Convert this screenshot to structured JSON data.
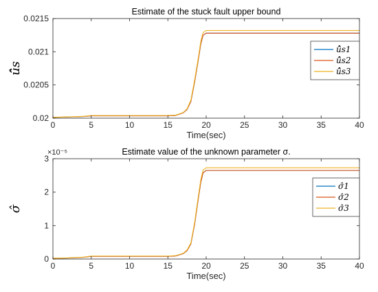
{
  "chart_data": [
    {
      "type": "line",
      "title": "Estimate of the stuck fault upper bound",
      "xlabel": "Time(sec)",
      "ylabel": "û̂s",
      "xlim": [
        0,
        40
      ],
      "ylim": [
        0.02,
        0.0215
      ],
      "xticks": [
        0,
        5,
        10,
        15,
        20,
        25,
        30,
        35,
        40
      ],
      "yticks": [
        0.02,
        0.0205,
        0.021,
        0.0215
      ],
      "ytick_labels": [
        "0.02",
        "0.0205",
        "0.021",
        "0.0215"
      ],
      "legend_position": "right",
      "series": [
        {
          "name": "û̂s1",
          "color": "#0072BD",
          "points": [
            [
              0,
              0.020012
            ],
            [
              2,
              0.020018
            ],
            [
              4,
              0.020025
            ],
            [
              5,
              0.020035
            ],
            [
              10,
              0.020035
            ],
            [
              15,
              0.020036
            ],
            [
              16,
              0.02004
            ],
            [
              17,
              0.02008
            ],
            [
              17.5,
              0.02013
            ],
            [
              18,
              0.02025
            ],
            [
              18.5,
              0.02055
            ],
            [
              19,
              0.0209
            ],
            [
              19.3,
              0.02112
            ],
            [
              19.6,
              0.02125
            ],
            [
              20,
              0.02128
            ],
            [
              25,
              0.02128
            ],
            [
              30,
              0.02128
            ],
            [
              35,
              0.02128
            ],
            [
              40,
              0.02128
            ]
          ]
        },
        {
          "name": "û̂s2",
          "color": "#D95319",
          "points": [
            [
              0,
              0.020012
            ],
            [
              2,
              0.020018
            ],
            [
              4,
              0.020025
            ],
            [
              5,
              0.020035
            ],
            [
              10,
              0.020035
            ],
            [
              15,
              0.020036
            ],
            [
              16,
              0.02004
            ],
            [
              17,
              0.02008
            ],
            [
              17.5,
              0.02013
            ],
            [
              18,
              0.02025
            ],
            [
              18.5,
              0.02055
            ],
            [
              19,
              0.0209
            ],
            [
              19.3,
              0.02112
            ],
            [
              19.6,
              0.02125
            ],
            [
              20,
              0.02128
            ],
            [
              25,
              0.02128
            ],
            [
              30,
              0.02128
            ],
            [
              35,
              0.02128
            ],
            [
              40,
              0.02128
            ]
          ]
        },
        {
          "name": "û̂s3",
          "color": "#EDB120",
          "points": [
            [
              0,
              0.020014
            ],
            [
              2,
              0.02002
            ],
            [
              4,
              0.020028
            ],
            [
              5,
              0.02004
            ],
            [
              10,
              0.02004
            ],
            [
              15,
              0.020041
            ],
            [
              16,
              0.020045
            ],
            [
              17,
              0.020085
            ],
            [
              17.5,
              0.02014
            ],
            [
              18,
              0.02027
            ],
            [
              18.5,
              0.02058
            ],
            [
              19,
              0.02093
            ],
            [
              19.3,
              0.02116
            ],
            [
              19.6,
              0.02129
            ],
            [
              20,
              0.02132
            ],
            [
              25,
              0.02132
            ],
            [
              30,
              0.02132
            ],
            [
              35,
              0.02132
            ],
            [
              40,
              0.02132
            ]
          ]
        }
      ]
    },
    {
      "type": "line",
      "title": "Estimate value of the unknown parameter σ.",
      "xlabel": "Time(sec)",
      "ylabel": "σ̂",
      "y_exponent": "×10⁻⁵",
      "xlim": [
        0,
        40
      ],
      "ylim": [
        0,
        3
      ],
      "xticks": [
        0,
        5,
        10,
        15,
        20,
        25,
        30,
        35,
        40
      ],
      "yticks": [
        0,
        1,
        2,
        3
      ],
      "ytick_labels": [
        "0",
        "1",
        "2",
        "3"
      ],
      "legend_position": "right",
      "series": [
        {
          "name": "σ̂1",
          "color": "#0072BD",
          "points": [
            [
              0,
              0.02
            ],
            [
              2,
              0.03
            ],
            [
              4,
              0.05
            ],
            [
              5,
              0.08
            ],
            [
              10,
              0.08
            ],
            [
              15,
              0.08
            ],
            [
              16,
              0.09
            ],
            [
              17,
              0.16
            ],
            [
              17.5,
              0.25
            ],
            [
              18,
              0.45
            ],
            [
              18.5,
              1.05
            ],
            [
              19,
              1.85
            ],
            [
              19.3,
              2.3
            ],
            [
              19.6,
              2.58
            ],
            [
              20,
              2.65
            ],
            [
              25,
              2.65
            ],
            [
              30,
              2.65
            ],
            [
              35,
              2.65
            ],
            [
              40,
              2.65
            ]
          ]
        },
        {
          "name": "σ̂2",
          "color": "#D95319",
          "points": [
            [
              0,
              0.02
            ],
            [
              2,
              0.03
            ],
            [
              4,
              0.05
            ],
            [
              5,
              0.08
            ],
            [
              10,
              0.08
            ],
            [
              15,
              0.08
            ],
            [
              16,
              0.09
            ],
            [
              17,
              0.16
            ],
            [
              17.5,
              0.25
            ],
            [
              18,
              0.45
            ],
            [
              18.5,
              1.05
            ],
            [
              19,
              1.85
            ],
            [
              19.3,
              2.3
            ],
            [
              19.6,
              2.58
            ],
            [
              20,
              2.65
            ],
            [
              25,
              2.65
            ],
            [
              30,
              2.65
            ],
            [
              35,
              2.65
            ],
            [
              40,
              2.65
            ]
          ]
        },
        {
          "name": "σ̂3",
          "color": "#EDB120",
          "points": [
            [
              0,
              0.025
            ],
            [
              2,
              0.035
            ],
            [
              4,
              0.055
            ],
            [
              5,
              0.09
            ],
            [
              10,
              0.09
            ],
            [
              15,
              0.09
            ],
            [
              16,
              0.1
            ],
            [
              17,
              0.17
            ],
            [
              17.5,
              0.27
            ],
            [
              18,
              0.48
            ],
            [
              18.5,
              1.1
            ],
            [
              19,
              1.92
            ],
            [
              19.3,
              2.38
            ],
            [
              19.6,
              2.66
            ],
            [
              20,
              2.73
            ],
            [
              25,
              2.73
            ],
            [
              30,
              2.73
            ],
            [
              35,
              2.73
            ],
            [
              40,
              2.73
            ]
          ]
        }
      ]
    }
  ]
}
